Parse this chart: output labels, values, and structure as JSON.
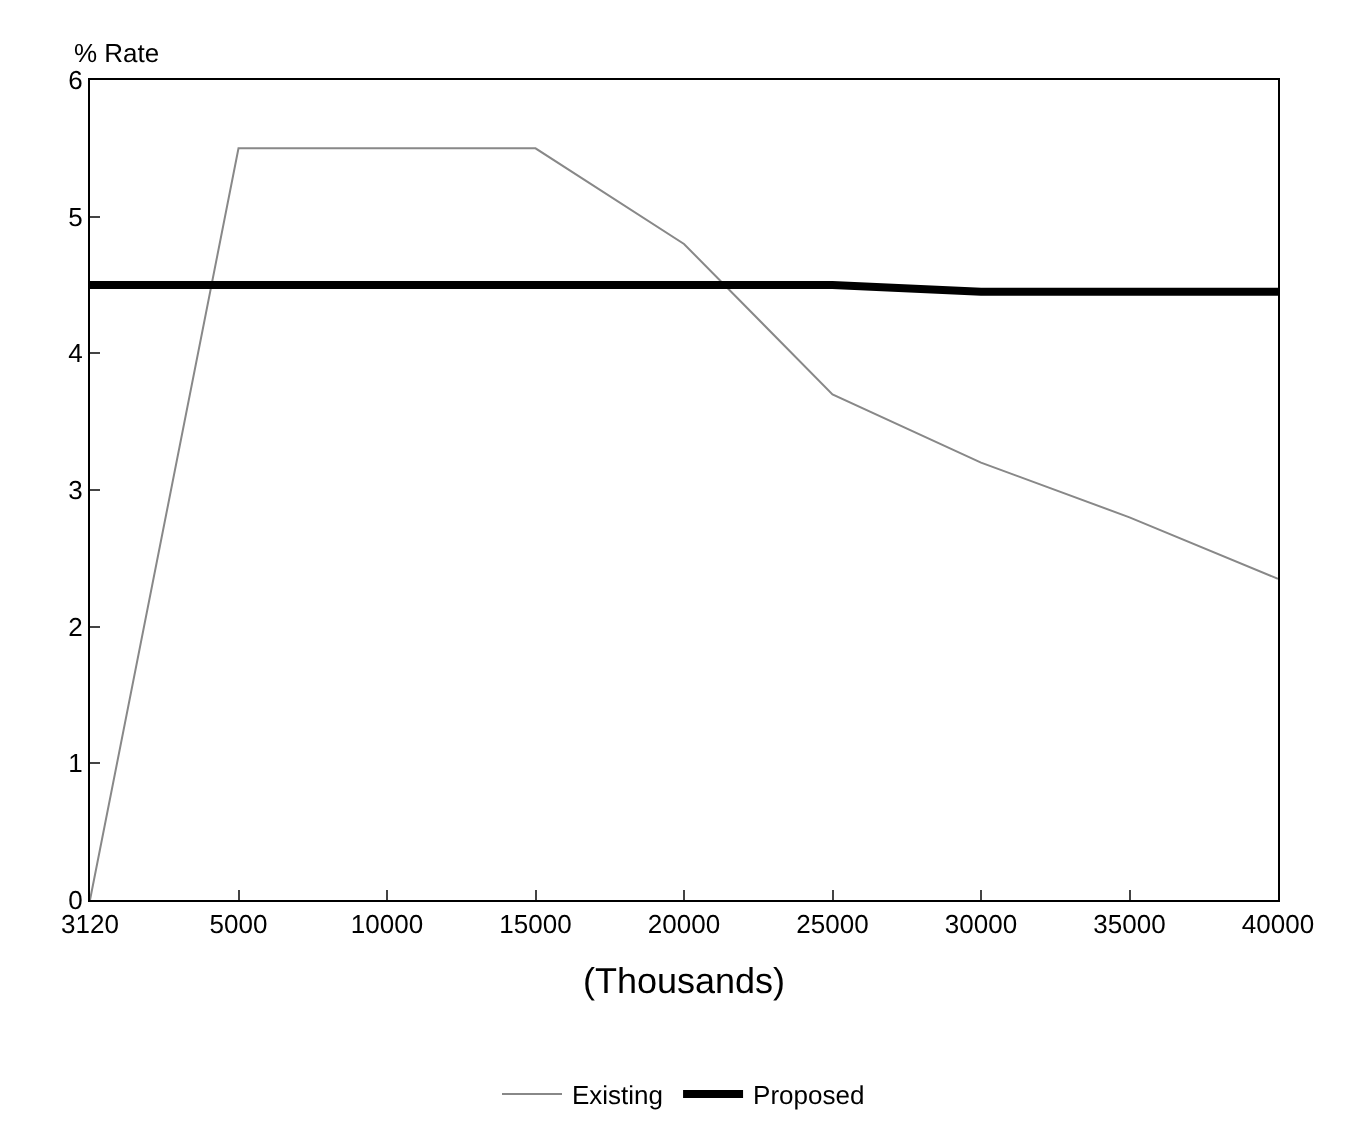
{
  "chart_data": {
    "type": "line",
    "ylabel": "% Rate",
    "xlabel": "(Thousands)",
    "categories": [
      "3120",
      "5000",
      "10000",
      "15000",
      "20000",
      "25000",
      "30000",
      "35000",
      "40000"
    ],
    "series": [
      {
        "name": "Existing",
        "color": "#888888",
        "values": [
          0,
          5.5,
          5.5,
          5.5,
          4.8,
          3.7,
          3.2,
          2.8,
          2.35
        ]
      },
      {
        "name": "Proposed",
        "color": "#000000",
        "values": [
          4.5,
          4.5,
          4.5,
          4.5,
          4.5,
          4.5,
          4.45,
          4.45,
          4.45
        ]
      }
    ],
    "ylim": [
      0,
      6
    ],
    "yticks": [
      0,
      1,
      2,
      3,
      4,
      5,
      6
    ],
    "legend": "bottom",
    "marker": "none",
    "line_style": "solid"
  }
}
